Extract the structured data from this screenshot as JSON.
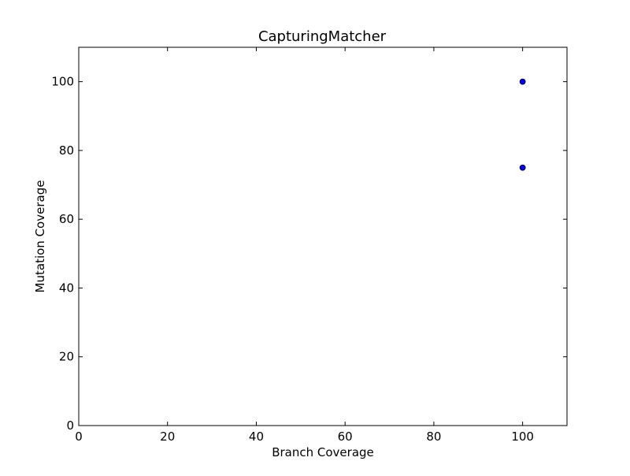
{
  "chart_data": {
    "type": "scatter",
    "title": "CapturingMatcher",
    "xlabel": "Branch Coverage",
    "ylabel": "Mutation Coverage",
    "xlim": [
      0,
      110
    ],
    "ylim": [
      0,
      110
    ],
    "xticks": [
      0,
      20,
      40,
      60,
      80,
      100
    ],
    "yticks": [
      0,
      20,
      40,
      60,
      80,
      100
    ],
    "xtick_labels": [
      "0",
      "20",
      "40",
      "60",
      "80",
      "100"
    ],
    "ytick_labels": [
      "0",
      "20",
      "40",
      "60",
      "80",
      "100"
    ],
    "grid": false,
    "series": [
      {
        "color": "#0000ff",
        "points": [
          {
            "x": 100,
            "y": 100
          },
          {
            "x": 100,
            "y": 75
          }
        ]
      }
    ]
  }
}
